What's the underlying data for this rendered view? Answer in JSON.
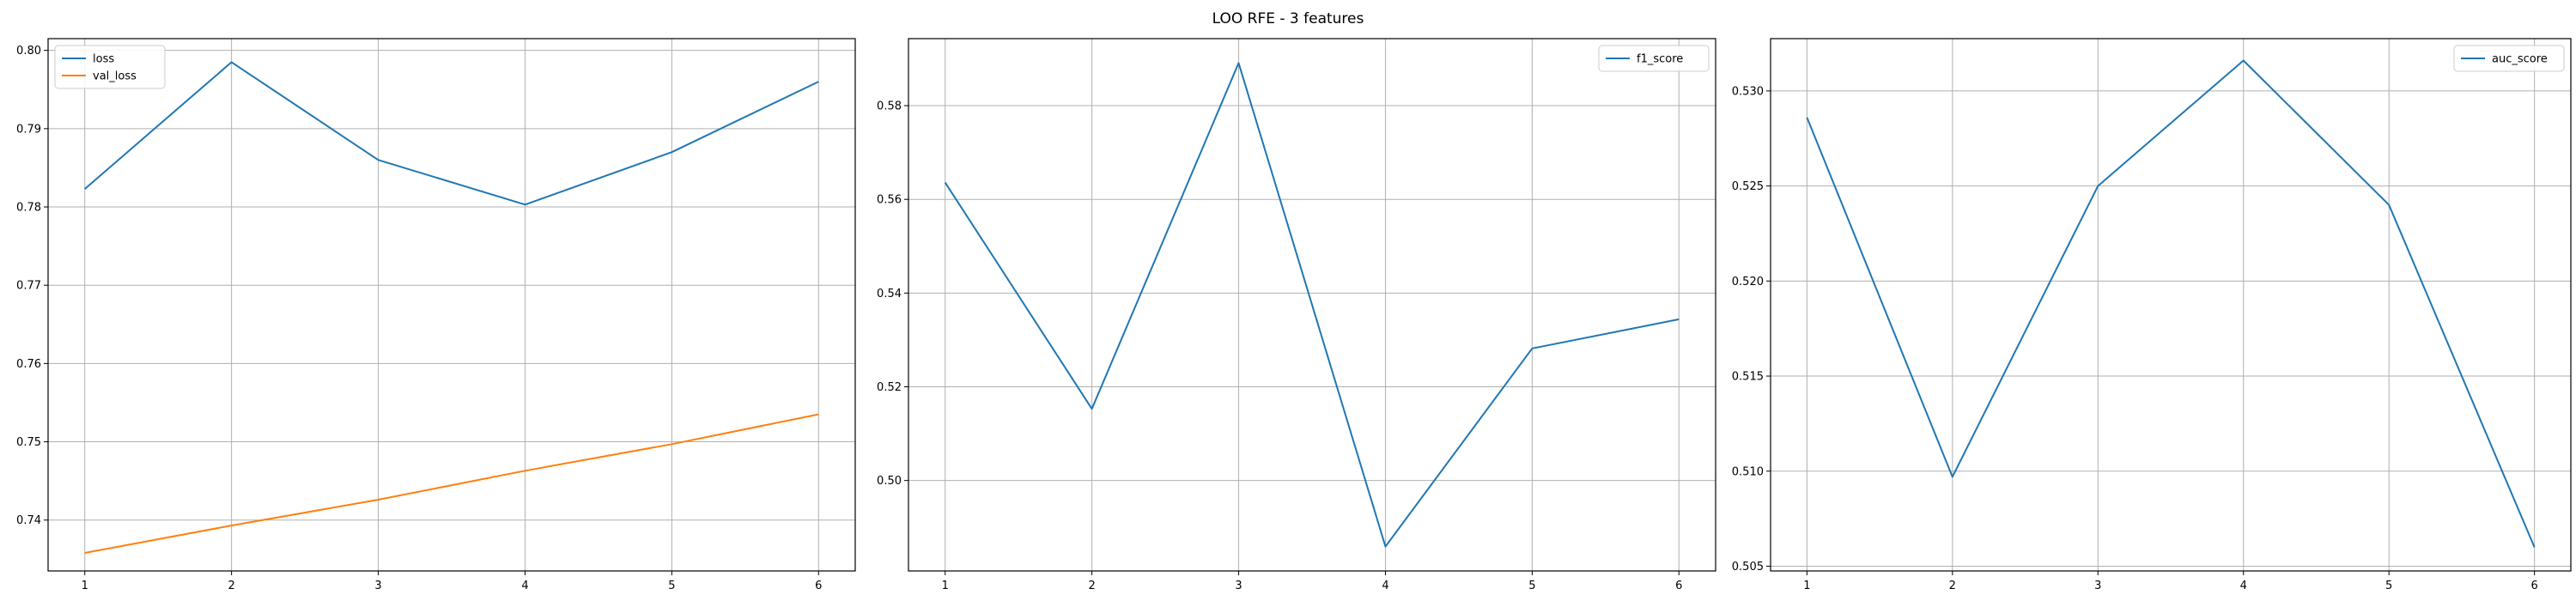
{
  "figure": {
    "suptitle": "LOO RFE - 3 features"
  },
  "chart_data": [
    {
      "type": "line",
      "title": "",
      "xlabel": "",
      "ylabel": "",
      "x": [
        1,
        2,
        3,
        4,
        5,
        6
      ],
      "xticks": [
        "1",
        "2",
        "3",
        "4",
        "5",
        "6"
      ],
      "yticks": [
        "0.74",
        "0.75",
        "0.76",
        "0.77",
        "0.78",
        "0.79",
        "0.80"
      ],
      "ylim": [
        0.7335,
        0.8015
      ],
      "grid": true,
      "legend_position": "top-left",
      "series": [
        {
          "name": "loss",
          "color": "#1f77b4",
          "values": [
            0.7823,
            0.7985,
            0.786,
            0.7803,
            0.787,
            0.796
          ]
        },
        {
          "name": "val_loss",
          "color": "#ff7f0e",
          "values": [
            0.7358,
            0.7393,
            0.7426,
            0.7463,
            0.7497,
            0.7535
          ]
        }
      ]
    },
    {
      "type": "line",
      "title": "",
      "xlabel": "",
      "ylabel": "",
      "x": [
        1,
        2,
        3,
        4,
        5,
        6
      ],
      "xticks": [
        "1",
        "2",
        "3",
        "4",
        "5",
        "6"
      ],
      "yticks": [
        "0.50",
        "0.52",
        "0.54",
        "0.56",
        "0.58"
      ],
      "ylim": [
        0.4807,
        0.5943
      ],
      "grid": true,
      "legend_position": "top-right",
      "series": [
        {
          "name": "f1_score",
          "color": "#1f77b4",
          "values": [
            0.5636,
            0.5153,
            0.5891,
            0.4859,
            0.5282,
            0.5344
          ]
        }
      ]
    },
    {
      "type": "line",
      "title": "",
      "xlabel": "",
      "ylabel": "",
      "x": [
        1,
        2,
        3,
        4,
        5,
        6
      ],
      "xticks": [
        "1",
        "2",
        "3",
        "4",
        "5",
        "6"
      ],
      "yticks": [
        "0.505",
        "0.510",
        "0.515",
        "0.520",
        "0.525",
        "0.530"
      ],
      "ylim": [
        0.50475,
        0.53275
      ],
      "grid": true,
      "legend_position": "top-right",
      "series": [
        {
          "name": "auc_score",
          "color": "#1f77b4",
          "values": [
            0.5286,
            0.5097,
            0.525,
            0.5316,
            0.524,
            0.506
          ]
        }
      ]
    }
  ]
}
